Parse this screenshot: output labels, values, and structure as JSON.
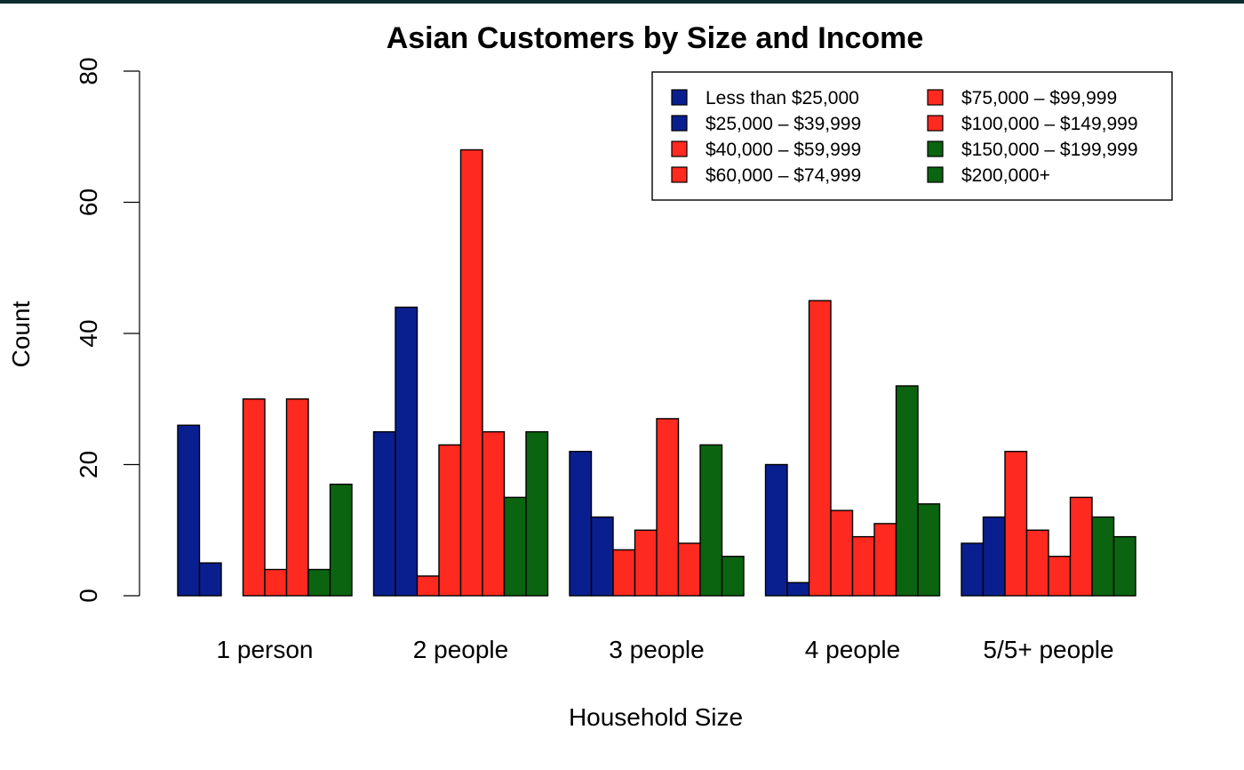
{
  "chart_data": {
    "type": "bar",
    "title": "Asian Customers by Size and Income",
    "xlabel": "Household Size",
    "ylabel": "Count",
    "ylim": [
      0,
      80
    ],
    "yticks": [
      0,
      20,
      40,
      60,
      80
    ],
    "grid": false,
    "legend_position": "top-right",
    "categories": [
      "1 person",
      "2 people",
      "3 people",
      "4 people",
      "5/5+ people"
    ],
    "series": [
      {
        "name": "Less than $25,000",
        "color": "#0a1f8f",
        "values": [
          26,
          25,
          22,
          20,
          8
        ]
      },
      {
        "name": "$25,000 – $39,999",
        "color": "#0a1f8f",
        "values": [
          5,
          44,
          12,
          2,
          12
        ]
      },
      {
        "name": "$40,000 – $59,999",
        "color": "#ff2a1f",
        "values": [
          0,
          3,
          7,
          45,
          22
        ]
      },
      {
        "name": "$60,000 – $74,999",
        "color": "#ff2a1f",
        "values": [
          30,
          23,
          10,
          13,
          10
        ]
      },
      {
        "name": "$75,000 – $99,999",
        "color": "#ff2a1f",
        "values": [
          4,
          68,
          27,
          9,
          6
        ]
      },
      {
        "name": "$100,000 – $149,999",
        "color": "#ff2a1f",
        "values": [
          30,
          25,
          8,
          11,
          15
        ]
      },
      {
        "name": "$150,000 – $199,999",
        "color": "#0b6410",
        "values": [
          4,
          15,
          23,
          32,
          12
        ]
      },
      {
        "name": "$200,000+",
        "color": "#0b6410",
        "values": [
          17,
          25,
          6,
          14,
          9
        ]
      }
    ]
  }
}
